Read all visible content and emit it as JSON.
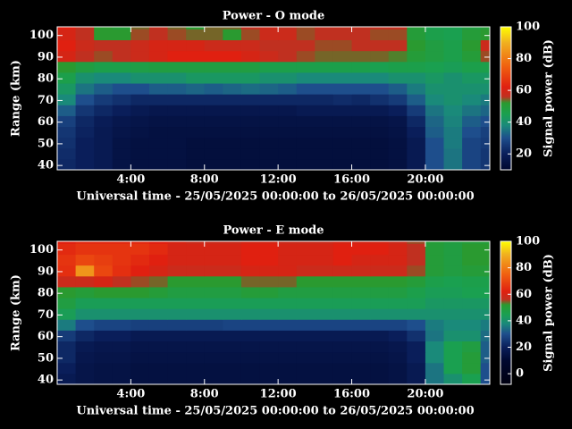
{
  "chart_data": [
    {
      "type": "heatmap",
      "title": "Power - O mode",
      "xlabel": "Universal time - 25/05/2025 00:00:00 to 26/05/2025 00:00:00",
      "ylabel": "Range (km)",
      "colorbar_label": "Signal power (dB)",
      "x": [
        0,
        1,
        2,
        3,
        4,
        5,
        6,
        7,
        8,
        9,
        10,
        11,
        12,
        13,
        14,
        15,
        16,
        17,
        18,
        19,
        20,
        21,
        22,
        23
      ],
      "y": [
        38,
        43,
        48,
        53,
        58,
        63,
        68,
        73,
        78,
        83,
        88,
        93,
        98,
        103
      ],
      "z": [
        [
          22,
          20,
          18,
          15,
          14,
          14,
          14,
          13,
          13,
          13,
          13,
          13,
          13,
          13,
          13,
          13,
          13,
          13,
          14,
          18,
          30,
          35,
          28,
          25
        ],
        [
          23,
          20,
          18,
          15,
          14,
          14,
          14,
          13,
          13,
          13,
          13,
          13,
          13,
          13,
          13,
          13,
          13,
          13,
          14,
          18,
          30,
          35,
          28,
          25
        ],
        [
          24,
          20,
          18,
          15,
          14,
          14,
          14,
          13,
          13,
          13,
          13,
          13,
          13,
          13,
          13,
          13,
          13,
          13,
          14,
          18,
          30,
          36,
          28,
          26
        ],
        [
          25,
          21,
          18,
          16,
          15,
          14,
          14,
          14,
          14,
          14,
          14,
          14,
          14,
          14,
          14,
          14,
          14,
          14,
          15,
          20,
          32,
          36,
          30,
          27
        ],
        [
          27,
          22,
          19,
          17,
          16,
          15,
          15,
          15,
          15,
          15,
          15,
          15,
          15,
          15,
          15,
          15,
          15,
          15,
          16,
          22,
          33,
          37,
          32,
          30
        ],
        [
          32,
          25,
          22,
          20,
          18,
          17,
          17,
          17,
          17,
          17,
          17,
          17,
          17,
          18,
          18,
          18,
          18,
          18,
          20,
          26,
          35,
          38,
          35,
          33
        ],
        [
          38,
          30,
          26,
          24,
          22,
          22,
          22,
          22,
          22,
          22,
          22,
          22,
          22,
          22,
          22,
          23,
          22,
          24,
          26,
          32,
          38,
          40,
          38,
          36
        ],
        [
          42,
          35,
          32,
          30,
          30,
          32,
          32,
          33,
          32,
          33,
          34,
          33,
          32,
          30,
          30,
          30,
          30,
          30,
          32,
          36,
          40,
          40,
          40,
          40
        ],
        [
          46,
          40,
          38,
          38,
          40,
          40,
          40,
          42,
          42,
          42,
          42,
          40,
          40,
          38,
          38,
          38,
          38,
          38,
          40,
          40,
          42,
          40,
          42,
          42
        ],
        [
          52,
          48,
          46,
          46,
          47,
          48,
          48,
          48,
          48,
          48,
          48,
          46,
          46,
          46,
          46,
          46,
          46,
          45,
          46,
          46,
          45,
          44,
          46,
          46
        ],
        [
          60,
          56,
          55,
          56,
          58,
          60,
          62,
          62,
          62,
          62,
          60,
          58,
          56,
          55,
          54,
          54,
          54,
          54,
          53,
          50,
          48,
          46,
          50,
          55
        ],
        [
          62,
          58,
          56,
          56,
          58,
          60,
          60,
          60,
          58,
          58,
          58,
          56,
          56,
          56,
          55,
          55,
          56,
          56,
          56,
          52,
          48,
          46,
          52,
          58
        ],
        [
          60,
          56,
          52,
          52,
          55,
          56,
          55,
          54,
          54,
          52,
          55,
          58,
          58,
          55,
          56,
          56,
          56,
          55,
          55,
          50,
          46,
          45,
          50,
          52
        ],
        [
          62,
          56,
          52,
          50,
          54,
          56,
          54,
          52,
          54,
          54,
          56,
          58,
          56,
          55,
          56,
          56,
          56,
          56,
          56,
          50,
          45,
          45,
          48,
          50
        ]
      ],
      "xlim": [
        0,
        23.5
      ],
      "ylim": [
        38,
        104
      ],
      "zlim": [
        10,
        100
      ],
      "xticks": [
        {
          "value": 4,
          "label": "4:00"
        },
        {
          "value": 8,
          "label": "8:00"
        },
        {
          "value": 12,
          "label": "12:00"
        },
        {
          "value": 16,
          "label": "16:00"
        },
        {
          "value": 20,
          "label": "20:00"
        }
      ],
      "yticks": [
        40,
        50,
        60,
        70,
        80,
        90,
        100
      ],
      "zticks": [
        20,
        40,
        60,
        80,
        100
      ],
      "colorscale": [
        [
          -10,
          "#000010"
        ],
        [
          10,
          "#000830"
        ],
        [
          20,
          "#0a1e5a"
        ],
        [
          30,
          "#1e4e8c"
        ],
        [
          38,
          "#1a8a7a"
        ],
        [
          45,
          "#1aa050"
        ],
        [
          52,
          "#2a9a30"
        ],
        [
          56,
          "#c03020"
        ],
        [
          62,
          "#e02010"
        ],
        [
          75,
          "#f06010"
        ],
        [
          90,
          "#f0b020"
        ],
        [
          100,
          "#ffff00"
        ]
      ]
    },
    {
      "type": "heatmap",
      "title": "Power - E mode",
      "xlabel": "Universal time - 25/05/2025 00:00:00 to 26/05/2025 00:00:00",
      "ylabel": "Range (km)",
      "colorbar_label": "Signal power (dB)",
      "x": [
        0,
        1,
        2,
        3,
        4,
        5,
        6,
        7,
        8,
        9,
        10,
        11,
        12,
        13,
        14,
        15,
        16,
        17,
        18,
        19,
        20,
        21,
        22,
        23
      ],
      "y": [
        38,
        43,
        48,
        53,
        58,
        63,
        68,
        73,
        78,
        83,
        88,
        93,
        98,
        103
      ],
      "z": [
        [
          18,
          16,
          15,
          15,
          14,
          14,
          14,
          14,
          14,
          14,
          14,
          14,
          14,
          14,
          14,
          14,
          14,
          14,
          15,
          18,
          35,
          40,
          45,
          30
        ],
        [
          20,
          16,
          15,
          15,
          14,
          14,
          14,
          14,
          14,
          14,
          14,
          14,
          14,
          14,
          14,
          14,
          14,
          14,
          15,
          18,
          35,
          45,
          50,
          30
        ],
        [
          22,
          17,
          16,
          16,
          15,
          15,
          15,
          15,
          15,
          15,
          15,
          15,
          15,
          15,
          15,
          15,
          15,
          15,
          16,
          20,
          38,
          45,
          50,
          32
        ],
        [
          22,
          18,
          17,
          17,
          16,
          16,
          16,
          16,
          16,
          16,
          16,
          16,
          16,
          16,
          16,
          16,
          16,
          16,
          17,
          20,
          38,
          45,
          48,
          32
        ],
        [
          26,
          22,
          20,
          20,
          18,
          18,
          18,
          18,
          18,
          18,
          18,
          18,
          18,
          18,
          18,
          18,
          18,
          18,
          20,
          24,
          35,
          40,
          40,
          34
        ],
        [
          36,
          30,
          28,
          28,
          27,
          27,
          27,
          27,
          27,
          28,
          28,
          28,
          28,
          28,
          28,
          28,
          28,
          28,
          28,
          30,
          36,
          38,
          38,
          36
        ],
        [
          44,
          40,
          40,
          40,
          40,
          40,
          40,
          40,
          40,
          40,
          40,
          40,
          40,
          40,
          40,
          40,
          40,
          40,
          40,
          40,
          40,
          40,
          40,
          40
        ],
        [
          48,
          44,
          44,
          44,
          44,
          44,
          44,
          44,
          44,
          44,
          44,
          44,
          44,
          44,
          44,
          44,
          44,
          44,
          44,
          44,
          42,
          42,
          42,
          42
        ],
        [
          52,
          50,
          52,
          52,
          52,
          50,
          48,
          48,
          48,
          48,
          50,
          50,
          48,
          48,
          48,
          48,
          48,
          48,
          48,
          46,
          44,
          44,
          45,
          45
        ],
        [
          58,
          58,
          60,
          56,
          55,
          54,
          52,
          52,
          52,
          52,
          54,
          54,
          54,
          52,
          52,
          52,
          52,
          52,
          52,
          50,
          46,
          45,
          46,
          46
        ],
        [
          65,
          85,
          70,
          65,
          62,
          60,
          58,
          58,
          58,
          58,
          60,
          60,
          60,
          58,
          58,
          58,
          58,
          58,
          58,
          55,
          50,
          48,
          50,
          50
        ],
        [
          66,
          70,
          68,
          66,
          64,
          62,
          60,
          60,
          60,
          60,
          62,
          62,
          60,
          60,
          60,
          62,
          60,
          60,
          60,
          56,
          50,
          48,
          52,
          52
        ],
        [
          64,
          66,
          66,
          66,
          66,
          64,
          60,
          60,
          60,
          60,
          62,
          62,
          60,
          60,
          60,
          62,
          62,
          62,
          60,
          56,
          50,
          48,
          52,
          52
        ],
        [
          62,
          64,
          64,
          64,
          64,
          62,
          60,
          58,
          58,
          58,
          60,
          60,
          58,
          58,
          58,
          60,
          60,
          60,
          58,
          55,
          50,
          48,
          50,
          50
        ]
      ],
      "xlim": [
        0,
        23.5
      ],
      "ylim": [
        38,
        104
      ],
      "zlim": [
        -8,
        100
      ],
      "xticks": [
        {
          "value": 4,
          "label": "4:00"
        },
        {
          "value": 8,
          "label": "8:00"
        },
        {
          "value": 12,
          "label": "12:00"
        },
        {
          "value": 16,
          "label": "16:00"
        },
        {
          "value": 20,
          "label": "20:00"
        }
      ],
      "yticks": [
        40,
        50,
        60,
        70,
        80,
        90,
        100
      ],
      "zticks": [
        0,
        20,
        40,
        60,
        80,
        100
      ],
      "colorscale": [
        [
          -10,
          "#000010"
        ],
        [
          10,
          "#000830"
        ],
        [
          20,
          "#0a1e5a"
        ],
        [
          30,
          "#1e4e8c"
        ],
        [
          38,
          "#1a8a7a"
        ],
        [
          45,
          "#1aa050"
        ],
        [
          52,
          "#2a9a30"
        ],
        [
          56,
          "#c03020"
        ],
        [
          62,
          "#e02010"
        ],
        [
          75,
          "#f06010"
        ],
        [
          90,
          "#f0b020"
        ],
        [
          100,
          "#ffff00"
        ]
      ]
    }
  ]
}
